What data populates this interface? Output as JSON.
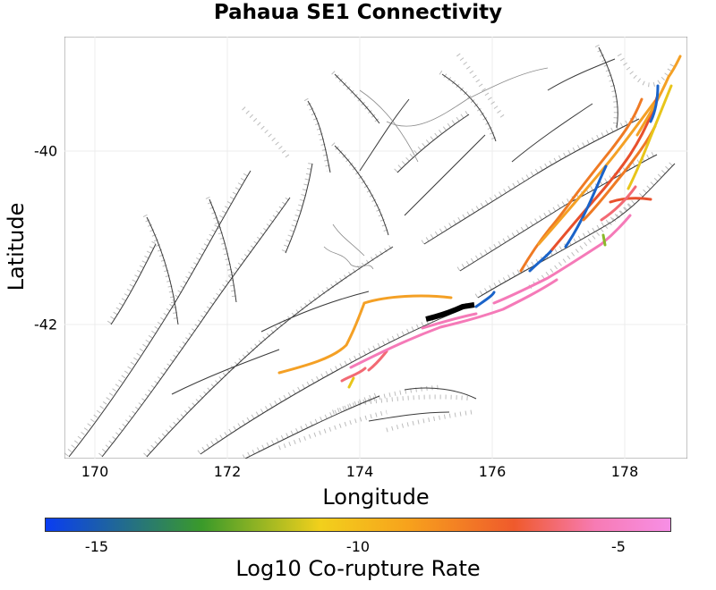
{
  "map": {
    "title": "Pahaua SE1 Connectivity",
    "xlabel": "Longitude",
    "ylabel": "Latitude",
    "x_range": [
      169.7,
      179.1
    ],
    "y_range": [
      -43.5,
      -38.7
    ],
    "x_ticks": [
      "170",
      "172",
      "174",
      "176",
      "178"
    ],
    "y_ticks": [
      "-40",
      "-42"
    ],
    "colorbar": {
      "label": "Log10 Co-rupture Rate",
      "ticks": [
        "-15",
        "-10",
        "-5"
      ],
      "colors": [
        "#0a3df2",
        "#3a9a2a",
        "#f2d01c",
        "#f7a21c",
        "#ef5a2c",
        "#f77bb4",
        "#f78fe6"
      ]
    },
    "target_fault_color": "#000000",
    "highlight_colors": {
      "blue": "#1a63c9",
      "yellow": "#e8c51a",
      "light_orange": "#f4a025",
      "orange": "#ef7a24",
      "red_orange": "#e8502c",
      "salmon": "#f26a74",
      "pink": "#f57ab8",
      "green": "#8ab82a"
    }
  }
}
